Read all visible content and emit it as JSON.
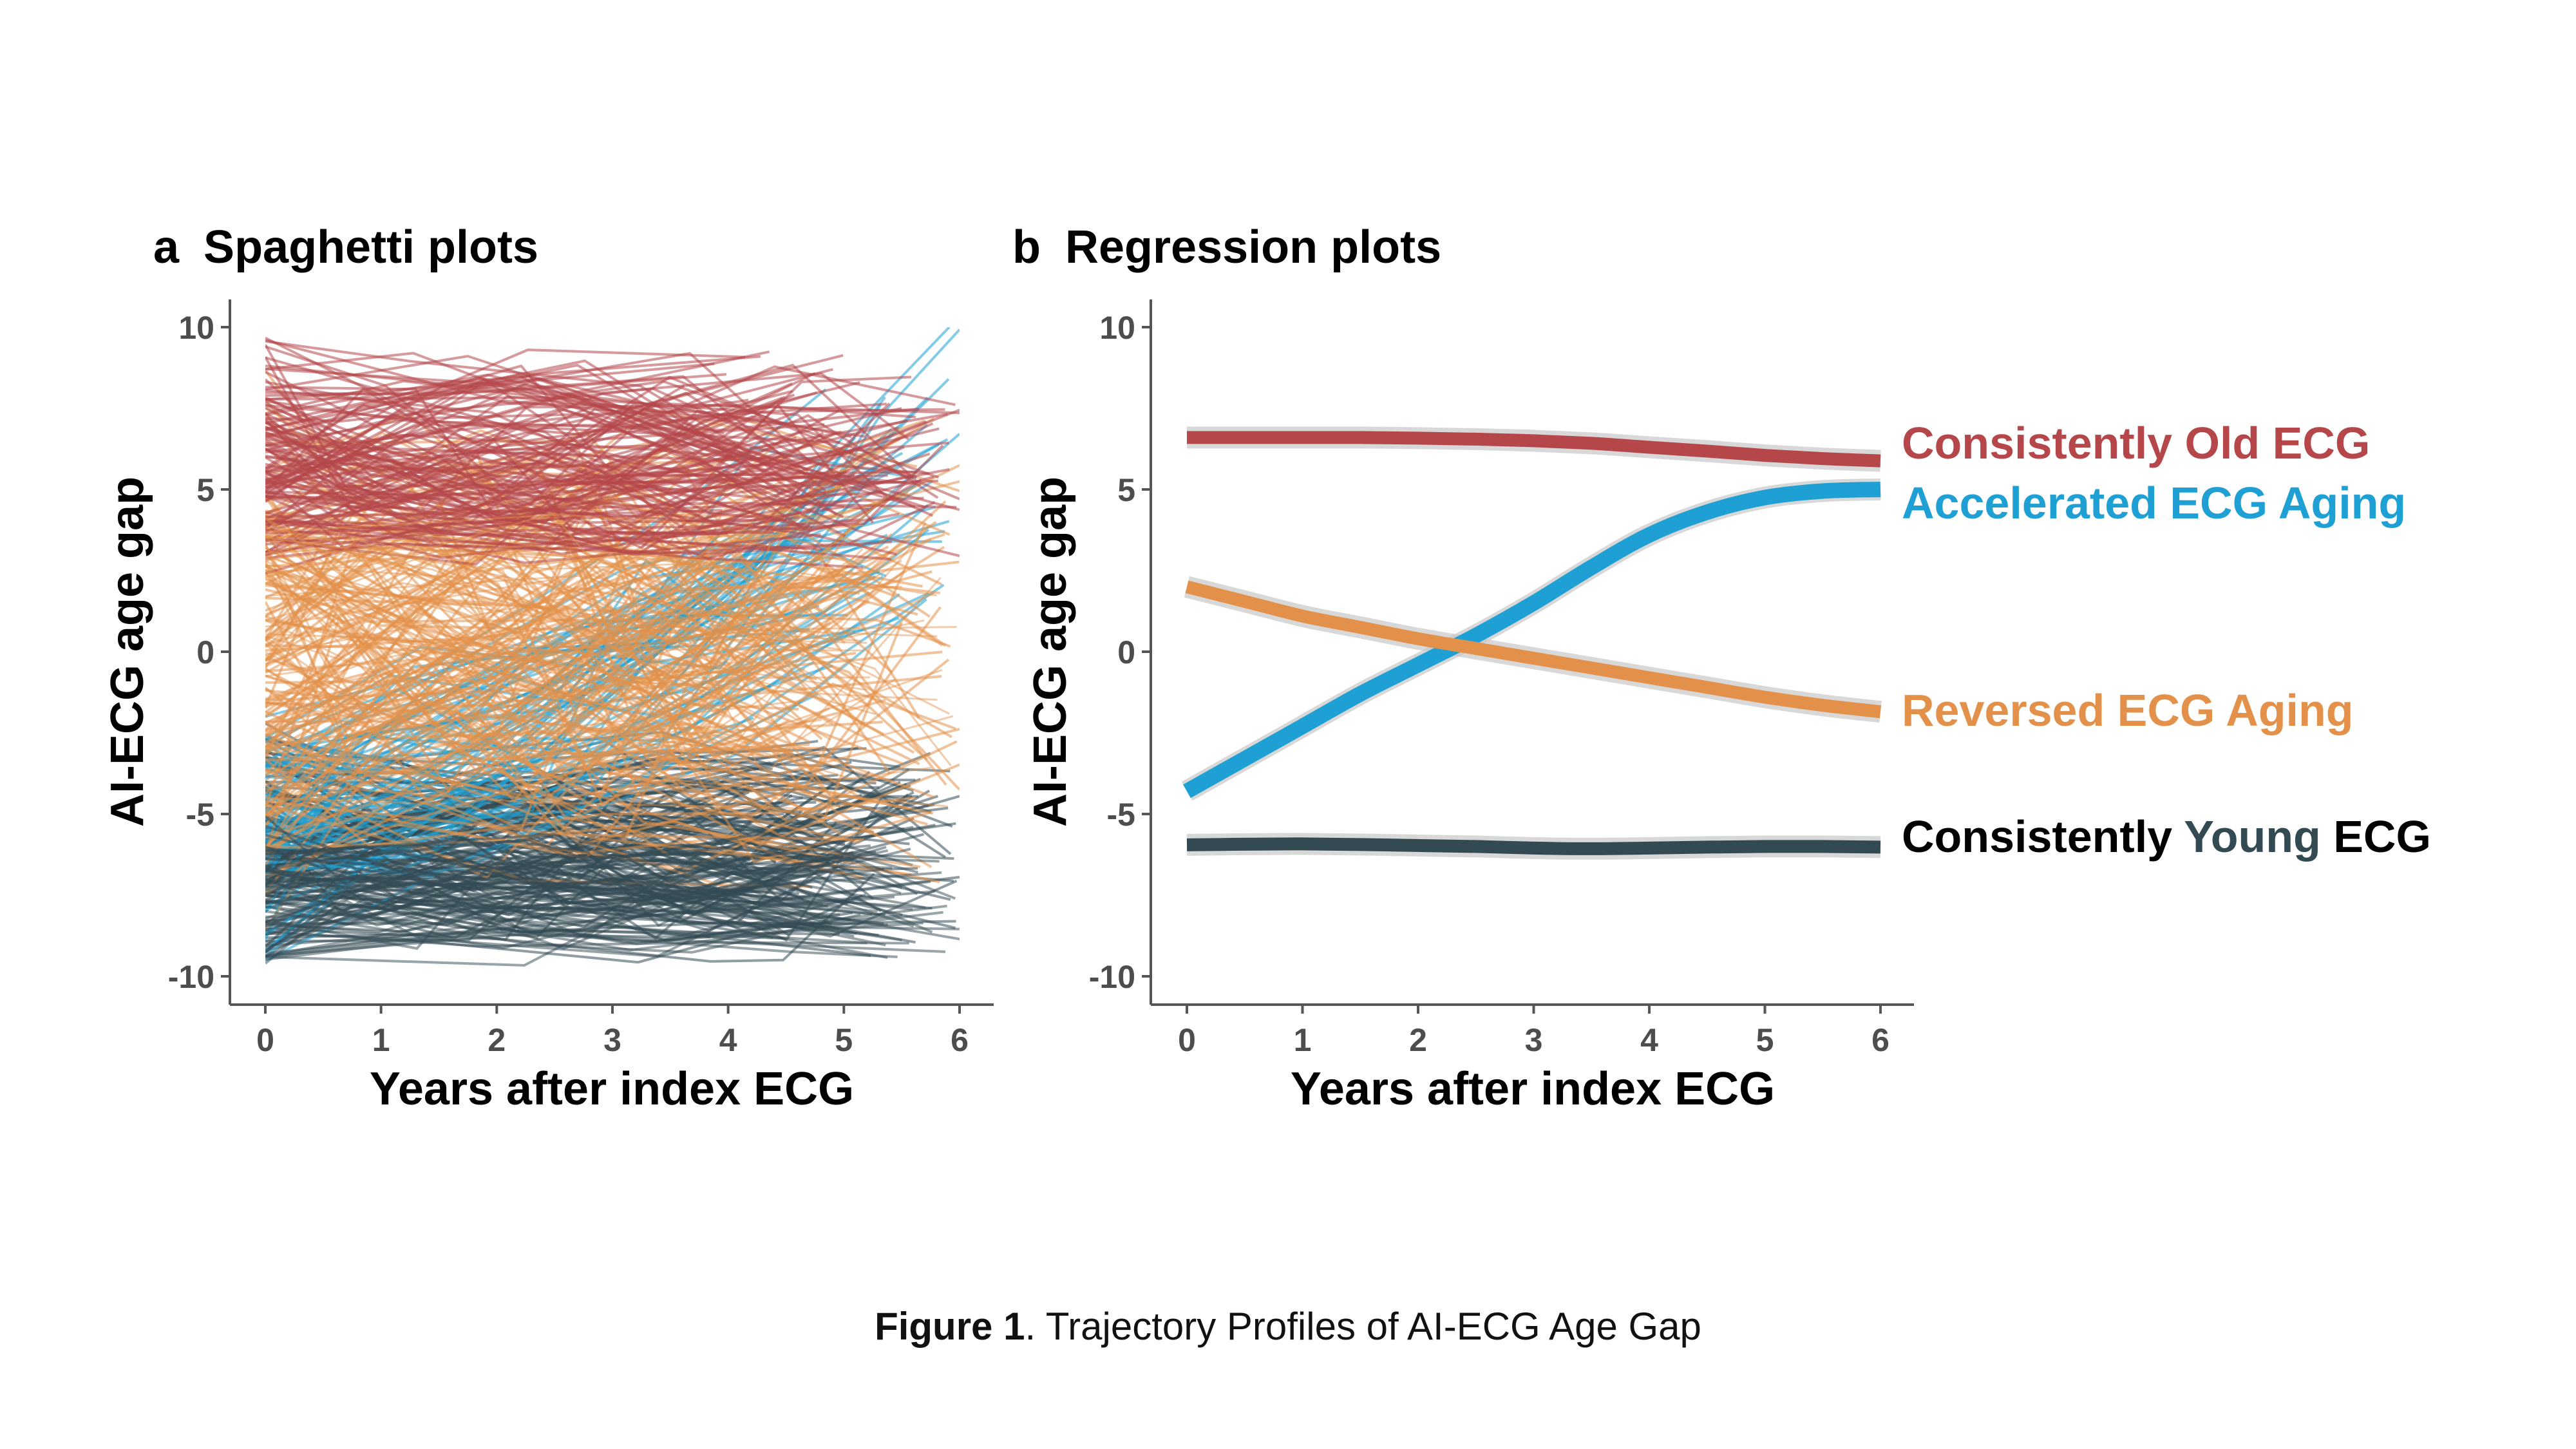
{
  "figure": {
    "caption_bold": "Figure 1",
    "caption_text": ". Trajectory Profiles of AI-ECG Age Gap"
  },
  "colors": {
    "old": "#b5474a",
    "accelerated": "#1ea0d4",
    "reversed": "#e3914a",
    "young": "#334a53",
    "black": "#000000",
    "ribbon": "#c8c8c8"
  },
  "chart_data": [
    {
      "type": "line",
      "panel_letter": "a",
      "title": "Spaghetti plots",
      "xlabel": "Years after index ECG",
      "ylabel": "AI-ECG age gap",
      "xlim": [
        0,
        6
      ],
      "ylim": [
        -10,
        10
      ],
      "xticks": [
        "0",
        "1",
        "2",
        "3",
        "4",
        "5",
        "6"
      ],
      "yticks": [
        "-10",
        "-5",
        "0",
        "5",
        "10"
      ],
      "grid": false,
      "description_series": [
        {
          "name": "Consistently Old ECG",
          "color_key": "old",
          "range": [
            2,
            10
          ]
        },
        {
          "name": "Reversed ECG Aging",
          "color_key": "reversed",
          "range": [
            -8,
            9
          ]
        },
        {
          "name": "Accelerated ECG Aging",
          "color_key": "accelerated",
          "range": [
            -10,
            10
          ]
        },
        {
          "name": "Consistently Young ECG",
          "color_key": "young",
          "range": [
            -10,
            -2
          ]
        }
      ]
    },
    {
      "type": "line",
      "panel_letter": "b",
      "title": "Regression plots",
      "xlabel": "Years after index ECG",
      "ylabel": "AI-ECG age gap",
      "xlim": [
        0,
        6
      ],
      "ylim": [
        -10,
        10
      ],
      "xticks": [
        "0",
        "1",
        "2",
        "3",
        "4",
        "5",
        "6"
      ],
      "yticks": [
        "-10",
        "-5",
        "0",
        "5",
        "10"
      ],
      "grid": false,
      "x": [
        0,
        0.5,
        1,
        1.5,
        2,
        2.5,
        3,
        3.5,
        4,
        4.5,
        5,
        5.5,
        6
      ],
      "series": [
        {
          "name": "Consistently Old ECG",
          "color_key": "old",
          "values": [
            6.6,
            6.6,
            6.6,
            6.6,
            6.58,
            6.55,
            6.5,
            6.42,
            6.3,
            6.18,
            6.05,
            5.95,
            5.88
          ]
        },
        {
          "name": "Accelerated ECG Aging",
          "color_key": "accelerated",
          "values": [
            -4.3,
            -3.3,
            -2.3,
            -1.3,
            -0.4,
            0.5,
            1.5,
            2.6,
            3.6,
            4.3,
            4.75,
            4.95,
            5.0
          ]
        },
        {
          "name": "Reversed ECG Aging",
          "color_key": "reversed",
          "values": [
            2.0,
            1.55,
            1.1,
            0.75,
            0.4,
            0.1,
            -0.2,
            -0.5,
            -0.8,
            -1.1,
            -1.4,
            -1.65,
            -1.85
          ]
        },
        {
          "name": "Consistently Young ECG",
          "color_key": "young",
          "values": [
            -5.95,
            -5.93,
            -5.92,
            -5.94,
            -5.97,
            -6.0,
            -6.05,
            -6.07,
            -6.05,
            -6.02,
            -6.0,
            -6.0,
            -6.02
          ]
        }
      ],
      "labels": {
        "old": "Consistently Old ECG",
        "accelerated": "Accelerated ECG Aging",
        "reversed": "Reversed ECG Aging",
        "young_prefix": "Consistently ",
        "young_mid": "Young",
        "young_suffix": " ECG"
      }
    }
  ]
}
